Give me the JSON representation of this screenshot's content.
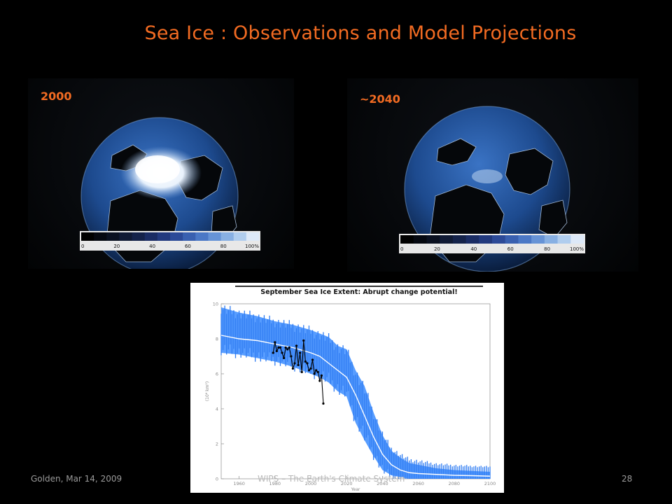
{
  "slide": {
    "title": "Sea Ice : Observations and Model Projections",
    "colors": {
      "title": "#f26b22",
      "year_label": "#f26b22",
      "model": "#3b8cff",
      "mean": "#ffffff",
      "obs": "#000000"
    }
  },
  "maps": [
    {
      "label": "2000",
      "icon": "arctic-globe-icon"
    },
    {
      "label": "~2040",
      "icon": "arctic-globe-icon"
    }
  ],
  "colorbar": {
    "ticks": [
      "0",
      "20",
      "40",
      "60",
      "80",
      "100%"
    ],
    "colors": [
      "#000000",
      "#050810",
      "#0a1020",
      "#101a35",
      "#14224a",
      "#1a2c64",
      "#22397e",
      "#2c4a98",
      "#3960b0",
      "#4b78c6",
      "#6693d6",
      "#88b0e3",
      "#b0cdee",
      "#dde9f8"
    ]
  },
  "chart_data": {
    "type": "line",
    "title": "September Sea Ice Extent: Abrupt change potential!",
    "xlabel": "Year",
    "ylabel": "(10⁶ km²)",
    "xlim": [
      1950,
      2100
    ],
    "ylim": [
      0,
      10
    ],
    "x_ticks": [
      "1960",
      "1980",
      "2000",
      "2020",
      "2040",
      "2060",
      "2080",
      "2100"
    ],
    "y_ticks": [
      "0",
      "2",
      "4",
      "6",
      "8",
      "10"
    ],
    "series": [
      {
        "role": "model ensemble range",
        "x": [
          1950,
          1960,
          1970,
          1980,
          1990,
          2000,
          2005,
          2010,
          2015,
          2020,
          2025,
          2030,
          2035,
          2040,
          2045,
          2050,
          2055,
          2060,
          2070,
          2080,
          2090,
          2100
        ],
        "low": [
          7.2,
          7.1,
          6.9,
          6.7,
          6.4,
          6.0,
          5.8,
          5.5,
          5.0,
          4.7,
          3.2,
          2.2,
          1.3,
          0.5,
          0.2,
          0.1,
          0,
          0,
          0,
          0,
          0,
          0
        ],
        "high": [
          9.8,
          9.5,
          9.3,
          9.0,
          8.8,
          8.5,
          8.3,
          8.1,
          7.6,
          7.4,
          6.2,
          5.3,
          3.8,
          2.5,
          1.6,
          1.2,
          0.9,
          0.8,
          0.6,
          0.5,
          0.45,
          0.4
        ]
      },
      {
        "role": "model ensemble mean",
        "x": [
          1950,
          1960,
          1970,
          1980,
          1990,
          2000,
          2005,
          2010,
          2015,
          2020,
          2025,
          2030,
          2035,
          2040,
          2045,
          2050,
          2055,
          2060,
          2070,
          2080,
          2090,
          2100
        ],
        "values": [
          8.2,
          8.0,
          7.9,
          7.7,
          7.5,
          7.2,
          7.0,
          6.6,
          6.2,
          5.8,
          4.8,
          3.6,
          2.4,
          1.4,
          0.8,
          0.5,
          0.35,
          0.3,
          0.25,
          0.2,
          0.18,
          0.15
        ]
      },
      {
        "role": "observations",
        "x": [
          1979,
          1980,
          1981,
          1982,
          1983,
          1984,
          1985,
          1986,
          1987,
          1988,
          1989,
          1990,
          1991,
          1992,
          1993,
          1994,
          1995,
          1996,
          1997,
          1998,
          1999,
          2000,
          2001,
          2002,
          2003,
          2004,
          2005,
          2006,
          2007
        ],
        "values": [
          7.2,
          7.8,
          7.3,
          7.5,
          7.5,
          7.2,
          6.9,
          7.5,
          7.4,
          7.5,
          7.0,
          6.3,
          6.6,
          7.6,
          6.5,
          7.2,
          6.1,
          7.9,
          6.7,
          6.6,
          6.2,
          6.3,
          6.8,
          6.0,
          6.2,
          6.1,
          5.6,
          5.9,
          4.3
        ]
      }
    ]
  },
  "footer": {
    "left": "Golden, Mar 14, 2009",
    "center": "WIPS – The Earth's Climate System",
    "page": "28"
  }
}
